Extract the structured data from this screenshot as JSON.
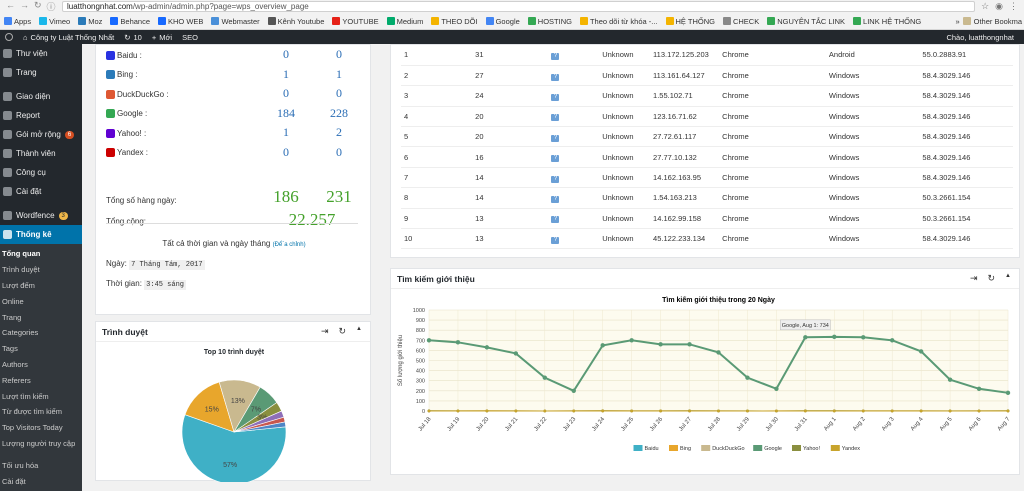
{
  "browser": {
    "url_host": "luatthongnhat.com",
    "url_path": "/wp-admin/admin.php?page=wps_overview_page",
    "bookmarks": [
      {
        "label": "Apps",
        "color": "#4285f4"
      },
      {
        "label": "Vimeo",
        "color": "#1ab7ea"
      },
      {
        "label": "Moz",
        "color": "#2b7bb9"
      },
      {
        "label": "Behance",
        "color": "#1769ff"
      },
      {
        "label": "KHO WEB",
        "color": "#1769ff"
      },
      {
        "label": "Webmaster",
        "color": "#4a90d9"
      },
      {
        "label": "Kênh Youtube",
        "color": "#555555"
      },
      {
        "label": "YOUTUBE",
        "color": "#e62117"
      },
      {
        "label": "Medium",
        "color": "#00ab6c"
      },
      {
        "label": "THEO DÕI",
        "color": "#f4b400"
      },
      {
        "label": "Google",
        "color": "#4285f4"
      },
      {
        "label": "HOSTING",
        "color": "#34a853"
      },
      {
        "label": "Theo dõi từ khóa -...",
        "color": "#f4b400"
      },
      {
        "label": "HỆ THỐNG",
        "color": "#f4b400"
      },
      {
        "label": "CHECK",
        "color": "#888888"
      },
      {
        "label": "NGUYÊN TẮC LINK",
        "color": "#34a853"
      },
      {
        "label": "LINK HỆ THỐNG",
        "color": "#34a853"
      }
    ],
    "other_bookmarks": "Other Bookma"
  },
  "adminbar": {
    "site": "Công ty Luật Thống Nhất",
    "updates": "10",
    "new": "Mới",
    "seo": "SEO",
    "greeting": "Chào, luatthongnhat"
  },
  "sidebar": {
    "items": [
      {
        "label": "Thư viện"
      },
      {
        "label": "Trang"
      },
      {
        "label": "Giao diện"
      },
      {
        "label": "Report"
      },
      {
        "label": "Gói mở rộng",
        "badge": "6"
      },
      {
        "label": "Thành viên"
      },
      {
        "label": "Công cụ"
      },
      {
        "label": "Cài đặt"
      },
      {
        "label": "Wordfence",
        "badge": "3"
      },
      {
        "label": "Thống kê"
      }
    ],
    "submenu": [
      "Tổng quan",
      "Trình duyệt",
      "Lượt đếm",
      "Online",
      "Trang",
      "Categories",
      "Tags",
      "Authors",
      "Referers",
      "Lượt tìm kiếm",
      "Từ được tìm kiếm",
      "Top Visitors Today",
      "Lượng người truy cập",
      "Tối ưu hóa",
      "Cài đặt"
    ]
  },
  "search_engines": {
    "rows": [
      {
        "name": "Baidu :",
        "today": "0",
        "yesterday": "0",
        "color": "#2932e1"
      },
      {
        "name": "Bing :",
        "today": "1",
        "yesterday": "1",
        "color": "#2b7bb9"
      },
      {
        "name": "DuckDuckGo :",
        "today": "0",
        "yesterday": "0",
        "color": "#de5833"
      },
      {
        "name": "Google :",
        "today": "184",
        "yesterday": "228",
        "color": "#34a853"
      },
      {
        "name": "Yahoo! :",
        "today": "1",
        "yesterday": "2",
        "color": "#6001d2"
      },
      {
        "name": "Yandex :",
        "today": "0",
        "yesterday": "0",
        "color": "#cc0000"
      }
    ],
    "daily_total_label": "Tổng số hàng ngày:",
    "daily_today": "186",
    "daily_yesterday": "231",
    "total_label": "Tổng cộng:",
    "total": "22.257",
    "all_time_label": "Tất cả thời gian và ngày tháng",
    "edit_link": "(Để`a chỉnh)",
    "date_label": "Ngày:",
    "date_value": "7 Tháng Tám, 2017",
    "time_label": "Thời gian:",
    "time_value": "3:45 sáng"
  },
  "browsers_panel": {
    "title": "Trình duyệt",
    "chart_title": "Top 10 trình duyệt",
    "chart_data": {
      "type": "pie",
      "title": "Top 10 trình duyệt",
      "slices": [
        {
          "value": 57,
          "label": "57%",
          "color": "#3fb0c6"
        },
        {
          "value": 15,
          "label": "15%",
          "color": "#e8a62c"
        },
        {
          "value": 13,
          "label": "13%",
          "color": "#c9b98f"
        },
        {
          "value": 7,
          "label": "7%",
          "color": "#5a9a75"
        },
        {
          "value": 3,
          "label": "3%",
          "color": "#8a8f3f"
        },
        {
          "value": 2,
          "label": "",
          "color": "#8e6fb8"
        },
        {
          "value": 1.5,
          "label": "",
          "color": "#c8574e"
        },
        {
          "value": 1.5,
          "label": "",
          "color": "#4f86c6"
        }
      ]
    }
  },
  "ip_table": {
    "rows": [
      [
        "1",
        "31",
        "Unknown",
        "113.172.125.203",
        "Chrome",
        "Android",
        "55.0.2883.91"
      ],
      [
        "2",
        "27",
        "Unknown",
        "113.161.64.127",
        "Chrome",
        "Windows",
        "58.4.3029.146"
      ],
      [
        "3",
        "24",
        "Unknown",
        "1.55.102.71",
        "Chrome",
        "Windows",
        "58.4.3029.146"
      ],
      [
        "4",
        "20",
        "Unknown",
        "123.16.71.62",
        "Chrome",
        "Windows",
        "58.4.3029.146"
      ],
      [
        "5",
        "20",
        "Unknown",
        "27.72.61.117",
        "Chrome",
        "Windows",
        "58.4.3029.146"
      ],
      [
        "6",
        "16",
        "Unknown",
        "27.77.10.132",
        "Chrome",
        "Windows",
        "58.4.3029.146"
      ],
      [
        "7",
        "14",
        "Unknown",
        "14.162.163.95",
        "Chrome",
        "Windows",
        "58.4.3029.146"
      ],
      [
        "8",
        "14",
        "Unknown",
        "1.54.163.213",
        "Chrome",
        "Windows",
        "50.3.2661.154"
      ],
      [
        "9",
        "13",
        "Unknown",
        "14.162.99.158",
        "Chrome",
        "Windows",
        "50.3.2661.154"
      ],
      [
        "10",
        "13",
        "Unknown",
        "45.122.233.134",
        "Chrome",
        "Windows",
        "58.4.3029.146"
      ]
    ]
  },
  "referral_panel": {
    "title": "Tìm kiếm giới thiệu",
    "tooltip": "Google, Aug 1: 734",
    "chart_data": {
      "type": "line",
      "title": "Tìm kiếm giới thiệu trong 20 Ngày",
      "ylabel": "Số lượng giới thiệu",
      "ylim": [
        0,
        1000
      ],
      "yticks": [
        0,
        100,
        200,
        300,
        400,
        500,
        600,
        700,
        800,
        900,
        1000
      ],
      "categories": [
        "Jul 18",
        "Jul 19",
        "Jul 20",
        "Jul 21",
        "Jul 22",
        "Jul 23",
        "Jul 24",
        "Jul 25",
        "Jul 26",
        "Jul 27",
        "Jul 28",
        "Jul 29",
        "Jul 30",
        "Jul 31",
        "Aug 1",
        "Aug 2",
        "Aug 3",
        "Aug 4",
        "Aug 5",
        "Aug 6",
        "Aug 7"
      ],
      "series": [
        {
          "name": "Baidu",
          "color": "#3fb0c6",
          "values": [
            0,
            0,
            0,
            0,
            0,
            0,
            0,
            0,
            0,
            0,
            0,
            0,
            0,
            0,
            0,
            0,
            0,
            0,
            0,
            0,
            0
          ]
        },
        {
          "name": "Bing",
          "color": "#e8a62c",
          "values": [
            1,
            1,
            2,
            1,
            0,
            1,
            2,
            1,
            1,
            1,
            1,
            0,
            1,
            1,
            1,
            1,
            1,
            1,
            0,
            1,
            1
          ]
        },
        {
          "name": "DuckDuckGo",
          "color": "#c9b98f",
          "values": [
            0,
            0,
            0,
            0,
            0,
            0,
            0,
            0,
            0,
            0,
            0,
            0,
            0,
            0,
            0,
            0,
            0,
            0,
            0,
            0,
            0
          ]
        },
        {
          "name": "Google",
          "color": "#5a9a75",
          "values": [
            700,
            680,
            630,
            570,
            330,
            200,
            650,
            700,
            660,
            660,
            580,
            330,
            220,
            730,
            734,
            730,
            700,
            590,
            310,
            220,
            180
          ]
        },
        {
          "name": "Yahoo!",
          "color": "#8a8f3f",
          "values": [
            2,
            1,
            1,
            1,
            0,
            1,
            2,
            1,
            1,
            2,
            1,
            1,
            0,
            2,
            2,
            1,
            1,
            1,
            1,
            1,
            2
          ]
        },
        {
          "name": "Yandex",
          "color": "#c8a42c",
          "values": [
            0,
            0,
            0,
            0,
            0,
            0,
            0,
            0,
            0,
            0,
            0,
            0,
            0,
            0,
            0,
            0,
            0,
            0,
            0,
            0,
            0
          ]
        }
      ]
    }
  }
}
